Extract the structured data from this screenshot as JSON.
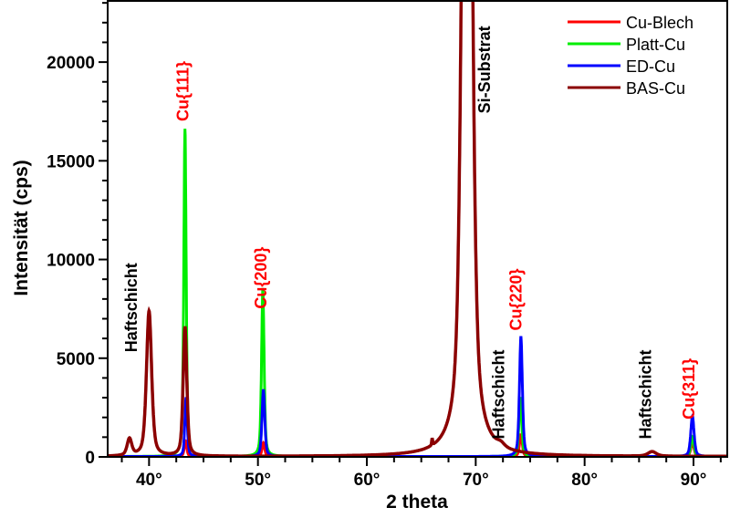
{
  "chart_data": {
    "type": "line",
    "title": "",
    "xlabel": "2 theta",
    "ylabel": "Intensität (cps)",
    "xlim": [
      36.2,
      93.1
    ],
    "ylim": [
      0,
      23100
    ],
    "xticks": [
      40,
      50,
      60,
      70,
      80,
      90
    ],
    "xtick_labels": [
      "40°",
      "50°",
      "60°",
      "70°",
      "80°",
      "90°"
    ],
    "yticks": [
      0,
      5000,
      10000,
      15000,
      20000
    ],
    "ytick_labels": [
      "0",
      "5000",
      "10000",
      "15000",
      "20000"
    ],
    "legend_position": "top-right",
    "series": [
      {
        "name": "Cu-Blech",
        "color": "#ff0000",
        "peaks": [
          [
            43.35,
            800,
            0.13
          ],
          [
            50.5,
            700,
            0.14
          ],
          [
            74.15,
            1100,
            0.15
          ],
          [
            89.9,
            700,
            0.17
          ]
        ]
      },
      {
        "name": "Platt-Cu",
        "color": "#00ee00",
        "peaks": [
          [
            43.3,
            16600,
            0.13
          ],
          [
            50.45,
            8500,
            0.14
          ],
          [
            74.1,
            3000,
            0.15
          ],
          [
            89.9,
            1000,
            0.17
          ]
        ]
      },
      {
        "name": "ED-Cu",
        "color": "#0000ff",
        "peaks": [
          [
            43.4,
            3000,
            0.13
          ],
          [
            50.5,
            3400,
            0.15
          ],
          [
            74.15,
            6050,
            0.16
          ],
          [
            89.9,
            2050,
            0.18
          ]
        ]
      },
      {
        "name": "BAS-Cu",
        "color": "#8b0000",
        "peaks": [
          [
            38.2,
            850,
            0.25
          ],
          [
            40.0,
            7350,
            0.28
          ],
          [
            43.3,
            6550,
            0.2
          ],
          [
            66.0,
            350,
            0.05
          ],
          [
            69.2,
            60000,
            0.45
          ],
          [
            72.3,
            180,
            0.4
          ],
          [
            86.2,
            230,
            0.45
          ]
        ]
      }
    ],
    "annotations": [
      {
        "text": "Haftschicht",
        "x": 38.9,
        "y": 5300,
        "color": "#000000"
      },
      {
        "text": "Cu{111}",
        "x": 43.6,
        "y": 17000,
        "color": "#ff0000"
      },
      {
        "text": "Cu{200}",
        "x": 50.8,
        "y": 7500,
        "color": "#ff0000"
      },
      {
        "text": "Si-Substrat",
        "x": 71.3,
        "y": 17400,
        "color": "#000000"
      },
      {
        "text": "Haftschicht",
        "x": 72.6,
        "y": 900,
        "color": "#000000"
      },
      {
        "text": "Cu{220}",
        "x": 74.2,
        "y": 6400,
        "color": "#ff0000"
      },
      {
        "text": "Haftschicht",
        "x": 86.1,
        "y": 900,
        "color": "#000000"
      },
      {
        "text": "Cu{311}",
        "x": 90.1,
        "y": 1900,
        "color": "#ff0000"
      }
    ]
  }
}
